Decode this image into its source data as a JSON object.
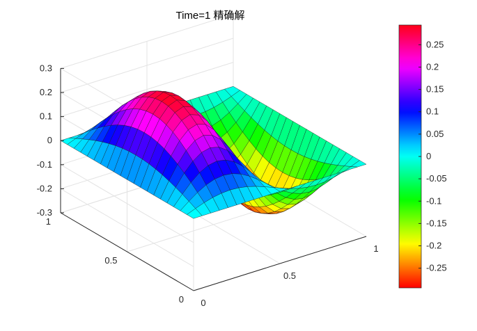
{
  "chart_data": {
    "type": "surface",
    "title": "Time=1   精确解",
    "x": [
      0,
      0.05,
      0.1,
      0.15,
      0.2,
      0.25,
      0.3,
      0.35,
      0.4,
      0.45,
      0.5,
      0.55,
      0.6,
      0.65,
      0.7,
      0.75,
      0.8,
      0.85,
      0.9,
      0.95,
      1
    ],
    "y": [
      0,
      0.05,
      0.1,
      0.15,
      0.2,
      0.25,
      0.3,
      0.35,
      0.4,
      0.45,
      0.5,
      0.55,
      0.6,
      0.65,
      0.7,
      0.75,
      0.8,
      0.85,
      0.9,
      0.95,
      1
    ],
    "z_function": "0.2941 * sin(2*pi*x) * sin(pi*y)",
    "z_max": 0.2941,
    "zlim": [
      -0.3,
      0.3
    ],
    "xlim": [
      0,
      1
    ],
    "ylim": [
      0,
      1
    ],
    "x_ticks": [
      "0",
      "0.5",
      "1"
    ],
    "y_ticks": [
      "0",
      "0.5",
      "1"
    ],
    "z_ticks": [
      "-0.3",
      "-0.2",
      "-0.1",
      "0",
      "0.1",
      "0.2",
      "0.3"
    ],
    "colormap": "hsv",
    "colorbar": {
      "range": [
        -0.2941,
        0.2941
      ],
      "ticks": [
        "-0.25",
        "-0.2",
        "-0.15",
        "-0.1",
        "-0.05",
        "0",
        "0.05",
        "0.1",
        "0.15",
        "0.2",
        "0.25"
      ]
    },
    "grid": true,
    "box": true
  }
}
